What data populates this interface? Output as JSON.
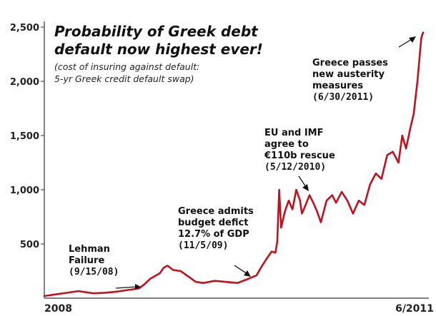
{
  "chart_data": {
    "type": "line",
    "title_lines": [
      "Probability of Greek debt",
      "default now highest ever!"
    ],
    "subtitle_lines": [
      "(cost of insuring against default:",
      "5-yr Greek credit default swap)"
    ],
    "ylim": [
      0,
      2500
    ],
    "yticks": [
      "500",
      "1,000",
      "1,500",
      "2,000",
      "2,500"
    ],
    "ytick_values": [
      500,
      1000,
      1500,
      2000,
      2500
    ],
    "xticks": [
      {
        "label": "2008",
        "t": 0.0
      },
      {
        "label": "6/2011",
        "t": 1.0
      }
    ],
    "grid": false,
    "series": [
      {
        "color": "#c0121e",
        "t": [
          0,
          0.03,
          0.06,
          0.09,
          0.11,
          0.13,
          0.16,
          0.19,
          0.22,
          0.25,
          0.265,
          0.28,
          0.29,
          0.305,
          0.315,
          0.325,
          0.34,
          0.36,
          0.38,
          0.4,
          0.42,
          0.45,
          0.48,
          0.51,
          0.54,
          0.56,
          0.575,
          0.59,
          0.6,
          0.61,
          0.615,
          0.62,
          0.625,
          0.635,
          0.645,
          0.655,
          0.665,
          0.675,
          0.68,
          0.685,
          0.7,
          0.71,
          0.72,
          0.73,
          0.745,
          0.76,
          0.77,
          0.785,
          0.8,
          0.815,
          0.83,
          0.845,
          0.86,
          0.875,
          0.89,
          0.905,
          0.92,
          0.935,
          0.945,
          0.955,
          0.965,
          0.975,
          0.985,
          0.99,
          0.995,
          1.0
        ],
        "values": [
          20,
          35,
          50,
          65,
          55,
          45,
          50,
          60,
          75,
          90,
          130,
          180,
          200,
          230,
          280,
          300,
          260,
          250,
          200,
          150,
          140,
          160,
          150,
          140,
          180,
          210,
          300,
          380,
          430,
          420,
          520,
          1000,
          650,
          800,
          900,
          820,
          1000,
          900,
          780,
          820,
          950,
          880,
          800,
          700,
          900,
          950,
          880,
          980,
          900,
          780,
          900,
          860,
          1050,
          1150,
          1100,
          1320,
          1350,
          1250,
          1500,
          1380,
          1550,
          1700,
          2000,
          2200,
          2400,
          2450
        ]
      }
    ],
    "annotations": [
      {
        "lines": [
          "Lehman",
          "Failure"
        ],
        "date": "(9/15/08)"
      },
      {
        "lines": [
          "Greece admits",
          "budget defict",
          "12.7% of GDP"
        ],
        "date": "(11/5/09)"
      },
      {
        "lines": [
          "EU and IMF",
          "agree to",
          "€110b rescue"
        ],
        "date": "(5/12/2010)"
      },
      {
        "lines": [
          "Greece passes",
          "new austerity",
          "measures"
        ],
        "date": "(6/30/2011)"
      }
    ]
  }
}
